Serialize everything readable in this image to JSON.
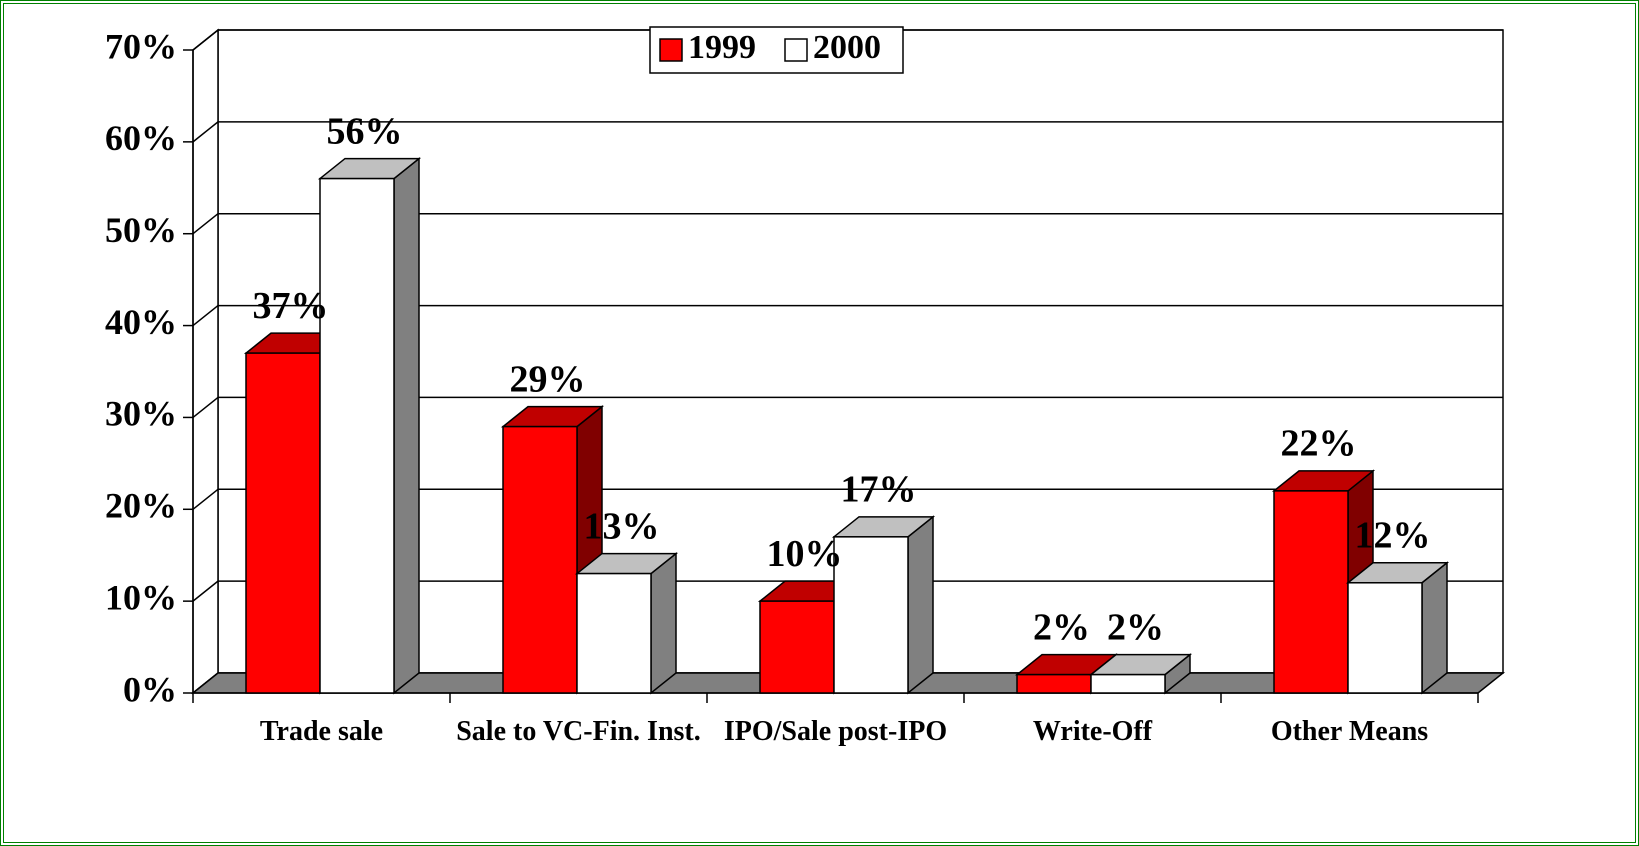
{
  "chart_data": {
    "type": "bar3d",
    "categories": [
      "Trade sale",
      "Sale to VC-Fin. Inst.",
      "IPO/Sale post-IPO",
      "Write-Off",
      "Other Means"
    ],
    "series": [
      {
        "name": "1999",
        "color": "#ff0000",
        "top": "#c00000",
        "side": "#800000",
        "values": [
          37,
          29,
          10,
          2,
          22
        ],
        "value_labels": [
          "37%",
          "29%",
          "10%",
          "2%",
          "22%"
        ]
      },
      {
        "name": "2000",
        "color": "#ffffff",
        "top": "#c0c0c0",
        "side": "#808080",
        "values": [
          56,
          13,
          17,
          2,
          12
        ],
        "value_labels": [
          "56%",
          "13%",
          "17%",
          "2%",
          "12%"
        ]
      }
    ],
    "ylim": [
      0,
      70
    ],
    "yticks": [
      {
        "value": 0,
        "label": "0%"
      },
      {
        "value": 10,
        "label": "10%"
      },
      {
        "value": 20,
        "label": "20%"
      },
      {
        "value": 30,
        "label": "30%"
      },
      {
        "value": 40,
        "label": "40%"
      },
      {
        "value": 50,
        "label": "50%"
      },
      {
        "value": 60,
        "label": "60%"
      },
      {
        "value": 70,
        "label": "70%"
      }
    ],
    "grid": true,
    "legend": "top"
  }
}
